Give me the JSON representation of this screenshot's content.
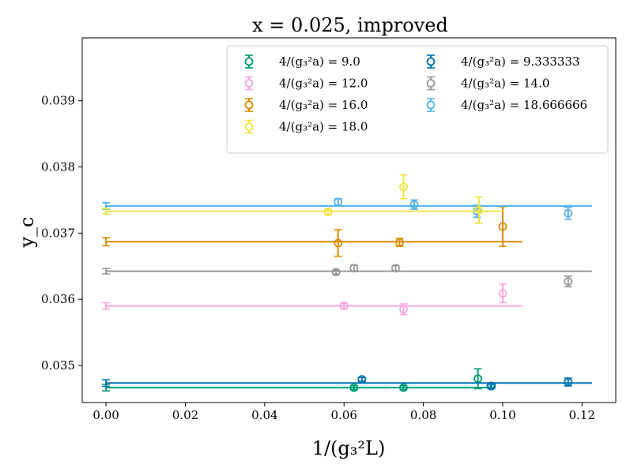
{
  "chart_data": {
    "type": "scatter",
    "title": "x = 0.025, improved",
    "xlabel": "1/(g₃²L)",
    "ylabel": "y_c",
    "xlim": [
      -0.006,
      0.1285
    ],
    "ylim": [
      0.03444,
      0.03995
    ],
    "xticks": [
      0.0,
      0.02,
      0.04,
      0.06,
      0.08,
      0.1,
      0.12
    ],
    "xtick_labels": [
      "0.00",
      "0.02",
      "0.04",
      "0.06",
      "0.08",
      "0.10",
      "0.12"
    ],
    "yticks": [
      0.035,
      0.036,
      0.037,
      0.038,
      0.039
    ],
    "ytick_labels": [
      "0.035",
      "0.036",
      "0.037",
      "0.038",
      "0.039"
    ],
    "grid": false,
    "legend_position": "top-right",
    "series": [
      {
        "name": "4/(g₃²a) = 9.0",
        "color": "#009e73",
        "fit": {
          "y": 0.034665,
          "x_end": 0.0975
        },
        "extrapolated": {
          "y": 0.034665,
          "err": 5e-05
        },
        "points": [
          {
            "x": 0.0625,
            "y": 0.034665,
            "err": 3e-05
          },
          {
            "x": 0.075,
            "y": 0.034665,
            "err": 3e-05
          },
          {
            "x": 0.09375,
            "y": 0.0348,
            "err": 0.00015
          },
          {
            "x": 0.0972,
            "y": 0.03469,
            "err": 3e-05
          }
        ]
      },
      {
        "name": "4/(g₃²a) = 9.333333",
        "color": "#0072b2",
        "fit": {
          "y": 0.034735,
          "x_end": 0.1225
        },
        "extrapolated": {
          "y": 0.034735,
          "err": 5e-05
        },
        "points": [
          {
            "x": 0.0645,
            "y": 0.03479,
            "err": 3e-05
          },
          {
            "x": 0.097,
            "y": 0.03469,
            "err": 3e-05
          },
          {
            "x": 0.1165,
            "y": 0.03475,
            "err": 6e-05
          }
        ]
      },
      {
        "name": "4/(g₃²a) = 12.0",
        "color": "#f9a8df",
        "fit": {
          "y": 0.0359,
          "x_end": 0.105
        },
        "extrapolated": {
          "y": 0.0359,
          "err": 5e-05
        },
        "points": [
          {
            "x": 0.06,
            "y": 0.0359,
            "err": 4e-05
          },
          {
            "x": 0.075,
            "y": 0.03585,
            "err": 8e-05
          },
          {
            "x": 0.1,
            "y": 0.03609,
            "err": 0.00014
          }
        ]
      },
      {
        "name": "4/(g₃²a) = 14.0",
        "color": "#999999",
        "fit": {
          "y": 0.036425,
          "x_end": 0.1225
        },
        "extrapolated": {
          "y": 0.036425,
          "err": 4e-05
        },
        "points": [
          {
            "x": 0.058,
            "y": 0.03641,
            "err": 3e-05
          },
          {
            "x": 0.0625,
            "y": 0.03647,
            "err": 5e-05
          },
          {
            "x": 0.073,
            "y": 0.03647,
            "err": 4e-05
          },
          {
            "x": 0.1165,
            "y": 0.03627,
            "err": 8e-05
          }
        ]
      },
      {
        "name": "4/(g₃²a) = 16.0",
        "color": "#d98c00",
        "fit": {
          "y": 0.03687,
          "x_end": 0.105
        },
        "extrapolated": {
          "y": 0.03687,
          "err": 6e-05
        },
        "points": [
          {
            "x": 0.0585,
            "y": 0.03685,
            "err": 0.0002
          },
          {
            "x": 0.074,
            "y": 0.03686,
            "err": 6e-05
          },
          {
            "x": 0.1,
            "y": 0.0371,
            "err": 0.0003
          }
        ]
      },
      {
        "name": "4/(g₃²a) = 18.666666",
        "color": "#56b4e9",
        "fit": {
          "y": 0.03741,
          "x_end": 0.1225
        },
        "extrapolated": {
          "y": 0.03741,
          "err": 5e-05
        },
        "points": [
          {
            "x": 0.0585,
            "y": 0.03747,
            "err": 5e-05
          },
          {
            "x": 0.0777,
            "y": 0.03743,
            "err": 7e-05
          },
          {
            "x": 0.0935,
            "y": 0.03733,
            "err": 9e-05
          },
          {
            "x": 0.1165,
            "y": 0.0373,
            "err": 9e-05
          }
        ]
      },
      {
        "name": "4/(g₃²a) = 18.0",
        "color": "#f0e442",
        "fit": {
          "y": 0.03733,
          "x_end": 0.1
        },
        "extrapolated": {
          "y": 0.03733,
          "err": 4e-05
        },
        "points": [
          {
            "x": 0.056,
            "y": 0.03732,
            "err": 4e-05
          },
          {
            "x": 0.075,
            "y": 0.0377,
            "err": 0.00018
          },
          {
            "x": 0.094,
            "y": 0.03735,
            "err": 0.0002
          }
        ]
      }
    ],
    "legend_order": [
      [
        "4/(g₃²a) = 9.0",
        "#009e73"
      ],
      [
        "4/(g₃²a) = 12.0",
        "#f9a8df"
      ],
      [
        "4/(g₃²a) = 16.0",
        "#d98c00"
      ],
      [
        "4/(g₃²a) = 18.0",
        "#f0e442"
      ],
      [
        "4/(g₃²a) = 9.333333",
        "#0072b2"
      ],
      [
        "4/(g₃²a) = 14.0",
        "#999999"
      ],
      [
        "4/(g₃²a) = 18.666666",
        "#56b4e9"
      ]
    ]
  }
}
